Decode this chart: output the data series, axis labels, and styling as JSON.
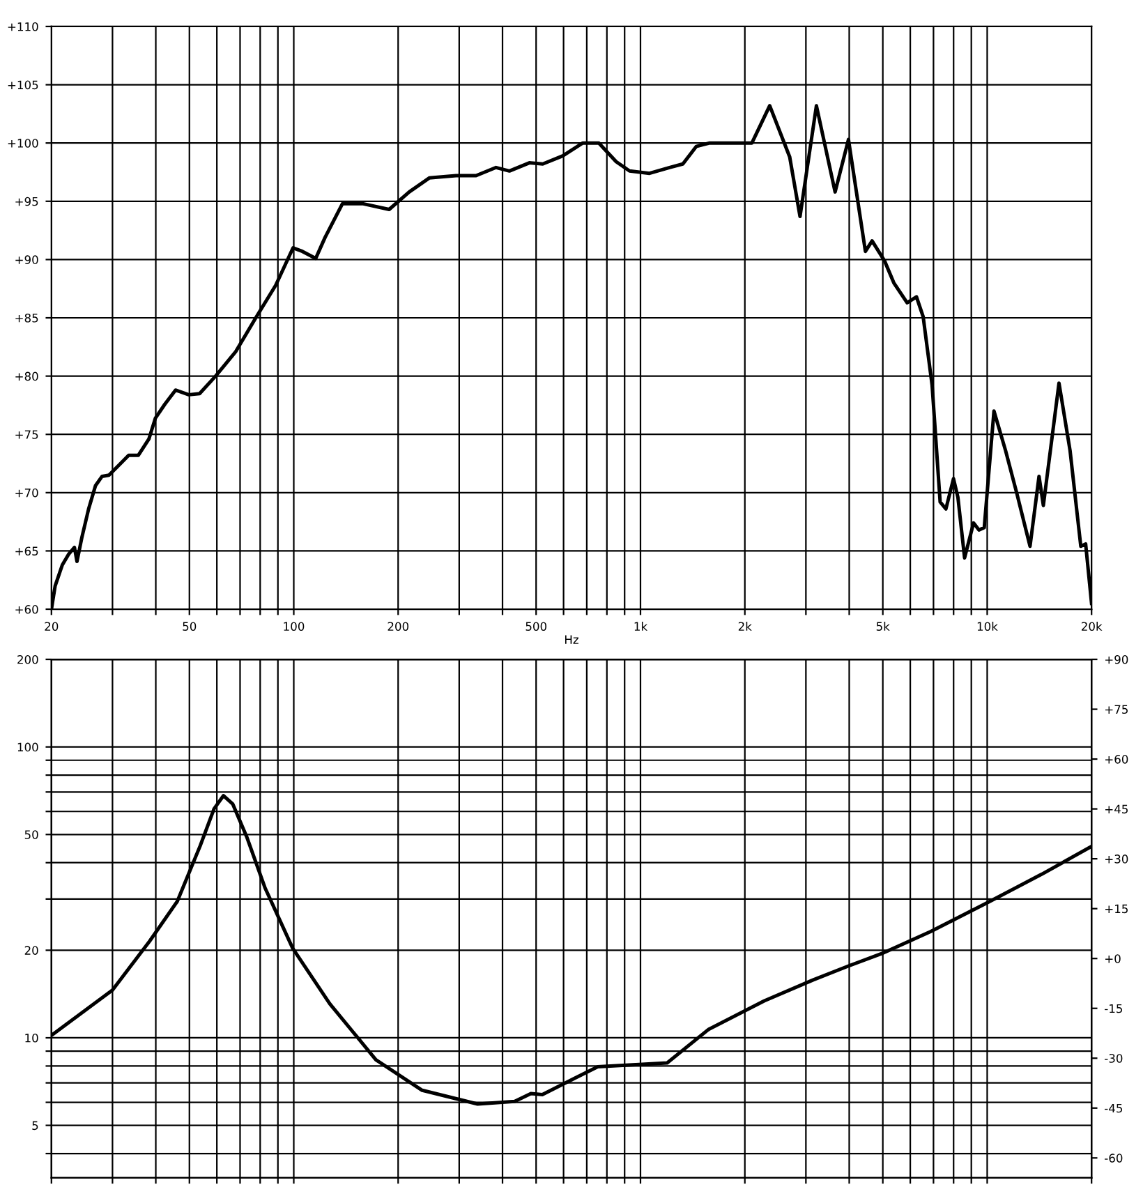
{
  "chart_data": [
    {
      "type": "line",
      "xlabel": "Hz",
      "log": "x",
      "grid": true,
      "marker": "none",
      "line_style": "solid",
      "xlim": [
        20,
        20000
      ],
      "ylim": [
        60,
        110
      ],
      "xticks": [
        20,
        {
          "value": 30,
          "label": null
        },
        {
          "value": 40,
          "label": null
        },
        50,
        {
          "value": 60,
          "label": null
        },
        {
          "value": 70,
          "label": null
        },
        {
          "value": 80,
          "label": null
        },
        {
          "value": 90,
          "label": null
        },
        100,
        200,
        {
          "value": 300,
          "label": null
        },
        {
          "value": 400,
          "label": null
        },
        500,
        {
          "value": 600,
          "label": null
        },
        {
          "value": 700,
          "label": null
        },
        {
          "value": 800,
          "label": null
        },
        {
          "value": 900,
          "label": null
        },
        {
          "value": 1000,
          "label": "1k"
        },
        {
          "value": 2000,
          "label": "2k"
        },
        {
          "value": 3000,
          "label": null
        },
        {
          "value": 4000,
          "label": null
        },
        {
          "value": 5000,
          "label": "5k"
        },
        {
          "value": 6000,
          "label": null
        },
        {
          "value": 7000,
          "label": null
        },
        {
          "value": 8000,
          "label": null
        },
        {
          "value": 9000,
          "label": null
        },
        {
          "value": 10000,
          "label": "10k"
        },
        {
          "value": 20000,
          "label": "20k"
        }
      ],
      "yticks": [
        {
          "value": 60,
          "label": "+60"
        },
        {
          "value": 65,
          "label": "+65"
        },
        {
          "value": 70,
          "label": "+70"
        },
        {
          "value": 75,
          "label": "+75"
        },
        {
          "value": 80,
          "label": "+80"
        },
        {
          "value": 85,
          "label": "+85"
        },
        {
          "value": 90,
          "label": "+90"
        },
        {
          "value": 95,
          "label": "+95"
        },
        {
          "value": 100,
          "label": "+100"
        },
        {
          "value": 105,
          "label": "+105"
        },
        {
          "value": 110,
          "label": "+110"
        }
      ],
      "series": [
        {
          "color": "#000000",
          "x": [
            20,
            20.5,
            21.5,
            22.4,
            23.3,
            23.7,
            24.5,
            25.6,
            26.8,
            28.0,
            29.3,
            31.4,
            33.4,
            35.6,
            38.2,
            39.9,
            42.5,
            45.6,
            49.8,
            53.5,
            59.5,
            68.0,
            77.7,
            88.7,
            99.5,
            105.9,
            115.7,
            123.1,
            138.2,
            157.8,
            188.4,
            215.3,
            245.9,
            293.7,
            335.5,
            383.2,
            418.7,
            478.2,
            522.5,
            596.8,
            681.7,
            758.4,
            851,
            929.7,
            1062,
            1213,
            1325,
            1448,
            1583,
            1890,
            2096,
            2359,
            2694,
            2885,
            3217,
            3642,
            3980,
            4454,
            4656,
            5056,
            5379,
            5876,
            6252,
            6536,
            6937,
            7316,
            7601,
            7995,
            8233,
            8606,
            9133,
            9463,
            9806,
            10460,
            11300,
            12160,
            13290,
            14110,
            14520,
            16110,
            17340,
            18620,
            19230,
            20000
          ],
          "values": [
            60,
            62,
            63.8,
            64.7,
            65.3,
            64.1,
            66.2,
            68.6,
            70.6,
            71.4,
            71.5,
            72.4,
            73.2,
            73.2,
            74.6,
            76.4,
            77.6,
            78.8,
            78.4,
            78.5,
            80,
            82.1,
            85,
            87.8,
            91,
            90.7,
            90.1,
            91.9,
            94.8,
            94.8,
            94.3,
            95.8,
            97,
            97.2,
            97.2,
            97.9,
            97.6,
            98.3,
            98.2,
            98.9,
            100,
            100,
            98.4,
            97.6,
            97.4,
            97.9,
            98.2,
            99.7,
            100,
            100,
            100,
            103.2,
            98.8,
            93.7,
            103.2,
            95.8,
            100.3,
            90.7,
            91.6,
            89.9,
            88,
            86.3,
            86.8,
            85.1,
            79.2,
            69.2,
            68.6,
            71.2,
            69.6,
            64.4,
            67.4,
            66.8,
            67,
            77,
            73.6,
            70,
            65.4,
            71.4,
            68.9,
            79.4,
            73.6,
            65.4,
            65.6,
            60.5
          ]
        }
      ]
    },
    {
      "type": "line",
      "log": "xy",
      "grid": true,
      "marker": "none",
      "line_style": "solid",
      "tick_labels": "y",
      "xlim": [
        20,
        20000
      ],
      "ylim": [
        3.3,
        200
      ],
      "y2lim": [
        -66,
        90
      ],
      "xticks": [
        {
          "value": 20,
          "label": null
        },
        {
          "value": 30,
          "label": null
        },
        {
          "value": 40,
          "label": null
        },
        {
          "value": 50,
          "label": null
        },
        {
          "value": 60,
          "label": null
        },
        {
          "value": 70,
          "label": null
        },
        {
          "value": 80,
          "label": null
        },
        {
          "value": 90,
          "label": null
        },
        {
          "value": 100,
          "label": null
        },
        {
          "value": 200,
          "label": null
        },
        {
          "value": 300,
          "label": null
        },
        {
          "value": 400,
          "label": null
        },
        {
          "value": 500,
          "label": null
        },
        {
          "value": 600,
          "label": null
        },
        {
          "value": 700,
          "label": null
        },
        {
          "value": 800,
          "label": null
        },
        {
          "value": 900,
          "label": null
        },
        {
          "value": 1000,
          "label": null
        },
        {
          "value": 2000,
          "label": null
        },
        {
          "value": 3000,
          "label": null
        },
        {
          "value": 4000,
          "label": null
        },
        {
          "value": 5000,
          "label": null
        },
        {
          "value": 6000,
          "label": null
        },
        {
          "value": 7000,
          "label": null
        },
        {
          "value": 8000,
          "label": null
        },
        {
          "value": 9000,
          "label": null
        },
        {
          "value": 10000,
          "label": null
        },
        {
          "value": 20000,
          "label": null
        }
      ],
      "yticks": [
        {
          "value": 4,
          "label": null
        },
        5,
        {
          "value": 6,
          "label": null
        },
        {
          "value": 7,
          "label": null
        },
        {
          "value": 8,
          "label": null
        },
        {
          "value": 9,
          "label": null
        },
        10,
        20,
        {
          "value": 30,
          "label": null
        },
        {
          "value": 40,
          "label": null
        },
        50,
        {
          "value": 60,
          "label": null
        },
        {
          "value": 70,
          "label": null
        },
        {
          "value": 80,
          "label": null
        },
        {
          "value": 90,
          "label": null
        },
        100,
        200
      ],
      "y2ticks": [
        {
          "value": 90,
          "label": "+90"
        },
        {
          "value": 75,
          "label": "+75"
        },
        {
          "value": 60,
          "label": "+60"
        },
        {
          "value": 45,
          "label": "+45"
        },
        {
          "value": 30,
          "label": "+30"
        },
        {
          "value": 15,
          "label": "+15"
        },
        {
          "value": 0,
          "label": "+0"
        },
        -15,
        -30,
        -45,
        -60
      ],
      "series": [
        {
          "color": "#000000",
          "x": [
            20,
            30.0,
            38.4,
            46.1,
            53.7,
            58.9,
            62.7,
            66.7,
            73.1,
            82.6,
            99.3,
            127,
            172.6,
            234.6,
            339,
            433.6,
            483,
            521,
            646,
            753,
            1194,
            1574,
            2275,
            3141,
            3954,
            4978,
            6871,
            9932,
            14360,
            20000
          ],
          "values": [
            10.2,
            14.6,
            21.5,
            29.4,
            45.7,
            61.3,
            68,
            63.6,
            49.2,
            32.8,
            20.3,
            13.1,
            8.4,
            6.6,
            5.92,
            6.04,
            6.43,
            6.38,
            7.26,
            7.95,
            8.2,
            10.7,
            13.4,
            15.8,
            17.6,
            19.5,
            23.2,
            29,
            36.5,
            45.5
          ]
        }
      ]
    }
  ]
}
